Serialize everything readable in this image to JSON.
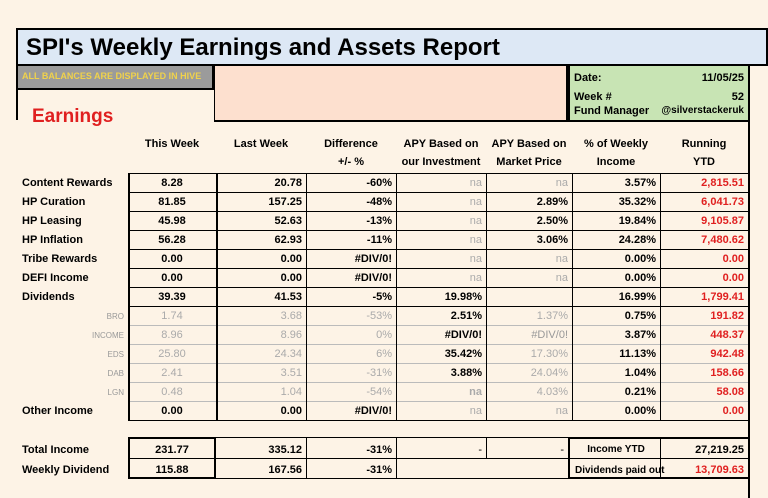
{
  "title": "SPI's Weekly Earnings and Assets Report",
  "balances_note": "ALL BALANCES ARE DISPLAYED IN HIVE",
  "meta": {
    "date_label": "Date:",
    "date_value": "11/05/25",
    "week_label": "Week #",
    "week_value": "52",
    "manager_label": "Fund Manager",
    "manager_value": "@silverstackeruk"
  },
  "section_title": "Earnings",
  "headers": {
    "this_week": "This Week",
    "last_week": "Last Week",
    "diff1": "Difference",
    "diff2": "+/- %",
    "apy_inv1": "APY Based on",
    "apy_inv2": "our Investment",
    "apy_mkt1": "APY Based on",
    "apy_mkt2": "Market Price",
    "pct1": "% of Weekly",
    "pct2": "Income",
    "ytd1": "Running",
    "ytd2": "YTD"
  },
  "rows": [
    {
      "label": "Content Rewards",
      "this": "8.28",
      "last": "20.78",
      "diff": "-60%",
      "apy_inv": "na",
      "apy_mkt": "na",
      "pct": "3.57%",
      "ytd": "2,815.51",
      "sub": false
    },
    {
      "label": "HP Curation",
      "this": "81.85",
      "last": "157.25",
      "diff": "-48%",
      "apy_inv": "na",
      "apy_mkt": "2.89%",
      "pct": "35.32%",
      "ytd": "6,041.73",
      "sub": false
    },
    {
      "label": "HP Leasing",
      "this": "45.98",
      "last": "52.63",
      "diff": "-13%",
      "apy_inv": "na",
      "apy_mkt": "2.50%",
      "pct": "19.84%",
      "ytd": "9,105.87",
      "sub": false
    },
    {
      "label": "HP Inflation",
      "this": "56.28",
      "last": "62.93",
      "diff": "-11%",
      "apy_inv": "na",
      "apy_mkt": "3.06%",
      "pct": "24.28%",
      "ytd": "7,480.62",
      "sub": false
    },
    {
      "label": "Tribe Rewards",
      "this": "0.00",
      "last": "0.00",
      "diff": "#DIV/0!",
      "apy_inv": "na",
      "apy_mkt": "na",
      "pct": "0.00%",
      "ytd": "0.00",
      "sub": false
    },
    {
      "label": "DEFI Income",
      "this": "0.00",
      "last": "0.00",
      "diff": "#DIV/0!",
      "apy_inv": "na",
      "apy_mkt": "na",
      "pct": "0.00%",
      "ytd": "0.00",
      "sub": false
    },
    {
      "label": "Dividends",
      "this": "39.39",
      "last": "41.53",
      "diff": "-5%",
      "apy_inv": "19.98%",
      "apy_mkt": "",
      "pct": "16.99%",
      "ytd": "1,799.41",
      "sub": false
    },
    {
      "label": "BRO",
      "this": "1.74",
      "last": "3.68",
      "diff": "-53%",
      "apy_inv": "2.51%",
      "apy_mkt": "1.37%",
      "pct": "0.75%",
      "ytd": "191.82",
      "sub": true
    },
    {
      "label": "INCOME",
      "this": "8.96",
      "last": "8.96",
      "diff": "0%",
      "apy_inv": "#DIV/0!",
      "apy_mkt": "#DIV/0!",
      "pct": "3.87%",
      "ytd": "448.37",
      "sub": true
    },
    {
      "label": "EDS",
      "this": "25.80",
      "last": "24.34",
      "diff": "6%",
      "apy_inv": "35.42%",
      "apy_mkt": "17.30%",
      "pct": "11.13%",
      "ytd": "942.48",
      "sub": true
    },
    {
      "label": "DAB",
      "this": "2.41",
      "last": "3.51",
      "diff": "-31%",
      "apy_inv": "3.88%",
      "apy_mkt": "24.04%",
      "pct": "1.04%",
      "ytd": "158.66",
      "sub": true
    },
    {
      "label": "LGN",
      "this": "0.48",
      "last": "1.04",
      "diff": "-54%",
      "apy_inv": "na",
      "apy_mkt": "4.03%",
      "pct": "0.21%",
      "ytd": "58.08",
      "sub": true
    },
    {
      "label": "Other Income",
      "this": "0.00",
      "last": "0.00",
      "diff": "#DIV/0!",
      "apy_inv": "na",
      "apy_mkt": "na",
      "pct": "0.00%",
      "ytd": "0.00",
      "sub": false
    }
  ],
  "totals": {
    "total_label": "Total Income",
    "total_this": "231.77",
    "total_last": "335.12",
    "total_diff": "-31%",
    "total_apy_inv": "-",
    "total_apy_mkt": "-",
    "income_ytd_label": "Income YTD",
    "income_ytd_value": "27,219.25",
    "div_label": "Weekly Dividend",
    "div_this": "115.88",
    "div_last": "167.56",
    "div_diff": "-31%",
    "div_paid_label": "Dividends paid out",
    "div_paid_value": "13,709.63"
  }
}
